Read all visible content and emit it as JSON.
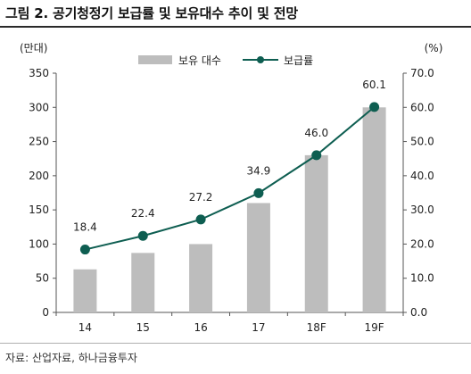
{
  "header": {
    "title": "그림 2. 공기청정기 보급률 및 보유대수 추이 및 전망"
  },
  "footer": {
    "source": "자료: 산업자료, 하나금융투자"
  },
  "chart_data": {
    "type": "bar",
    "title": "그림 2. 공기청정기 보급률 및 보유대수 추이 및 전망",
    "categories": [
      "14",
      "15",
      "16",
      "17",
      "18F",
      "19F"
    ],
    "series": [
      {
        "name": "보유 대수",
        "type": "bar",
        "axis": "left",
        "color": "#bdbdbd",
        "values": [
          63,
          87,
          100,
          160,
          230,
          300
        ]
      },
      {
        "name": "보급률",
        "type": "line",
        "axis": "right",
        "color": "#0e5e51",
        "values": [
          18.4,
          22.4,
          27.2,
          34.9,
          46.0,
          60.1
        ],
        "labels": [
          "18.4",
          "22.4",
          "27.2",
          "34.9",
          "46.0",
          "60.1"
        ]
      }
    ],
    "y_left": {
      "unit_label": "(만대)",
      "min": 0,
      "max": 350,
      "ticks": [
        "0",
        "50",
        "100",
        "150",
        "200",
        "250",
        "300",
        "350"
      ]
    },
    "y_right": {
      "unit_label": "(%)",
      "min": 0,
      "max": 70,
      "ticks": [
        "0.0",
        "10.0",
        "20.0",
        "30.0",
        "40.0",
        "50.0",
        "60.0",
        "70.0"
      ]
    },
    "grid": false,
    "legend": "top-center"
  }
}
